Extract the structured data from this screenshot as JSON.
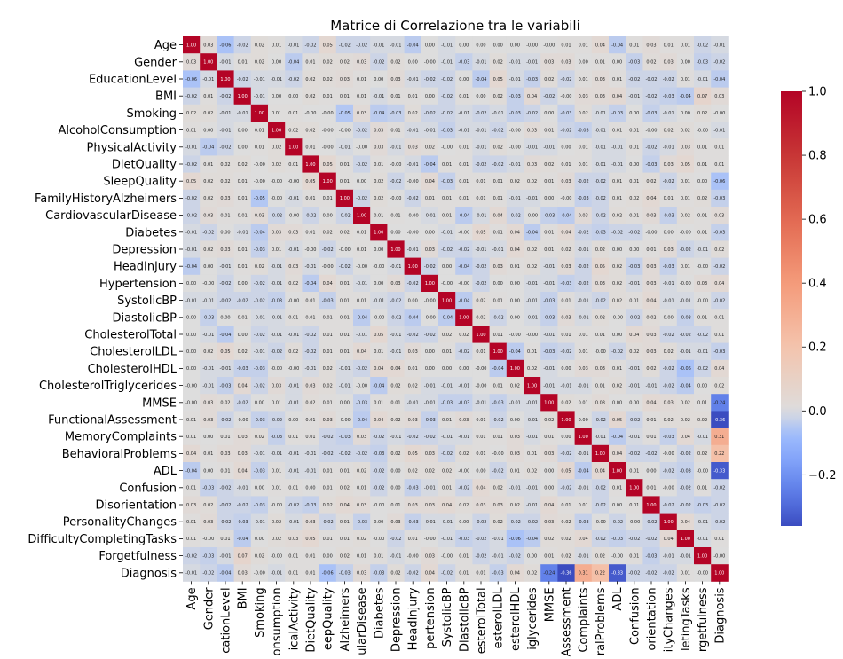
{
  "chart_data": {
    "type": "heatmap",
    "title": "Matrice di Correlazione tra le variabili",
    "variables": [
      "Age",
      "Gender",
      "EducationLevel",
      "BMI",
      "Smoking",
      "AlcoholConsumption",
      "PhysicalActivity",
      "DietQuality",
      "SleepQuality",
      "FamilyHistoryAlzheimers",
      "CardiovascularDisease",
      "Diabetes",
      "Depression",
      "HeadInjury",
      "Hypertension",
      "SystolicBP",
      "DiastolicBP",
      "CholesterolTotal",
      "CholesterolLDL",
      "CholesterolHDL",
      "CholesterolTriglycerides",
      "MMSE",
      "FunctionalAssessment",
      "MemoryComplaints",
      "BehavioralProblems",
      "ADL",
      "Confusion",
      "Disorientation",
      "PersonalityChanges",
      "DifficultyCompletingTasks",
      "Forgetfulness",
      "Diagnosis"
    ],
    "x_tick_labels": [
      "Age",
      "Gender",
      "cationLevel",
      "BMI",
      "Smoking",
      "onsumption",
      "icalActivity",
      "DietQuality",
      "eepQuality",
      "Alzheimers",
      "ularDisease",
      "Diabetes",
      "Depression",
      "HeadInjury",
      "pertension",
      "SystolicBP",
      "DiastolicBP",
      "esterolTotal",
      "esterolLDL",
      "esterolHDL",
      "iglycerides",
      "MMSE",
      "Assessment",
      "Complaints",
      "ralProblems",
      "ADL",
      "Confusion",
      "orientation",
      "ityChanges",
      "letingTasks",
      "rgetfulness",
      "Diagnosis"
    ],
    "matrix": [
      [
        1.0,
        0.03,
        -0.06,
        -0.02,
        0.02,
        0.01,
        -0.01,
        -0.02,
        0.05,
        -0.02,
        -0.02,
        -0.01,
        -0.01,
        -0.04,
        0.0,
        -0.01,
        0.0,
        0.0,
        0.0,
        0.0,
        -0.0,
        -0.0,
        0.01,
        0.01,
        0.04,
        -0.04,
        0.01,
        0.03,
        0.01,
        0.01,
        -0.02,
        -0.01
      ],
      [
        0.03,
        1.0,
        -0.01,
        0.01,
        0.02,
        0.0,
        -0.04,
        0.01,
        0.02,
        0.02,
        0.03,
        -0.02,
        0.02,
        0.0,
        -0.0,
        -0.01,
        -0.03,
        -0.01,
        0.02,
        -0.01,
        -0.01,
        0.03,
        0.03,
        0.0,
        0.01,
        0.0,
        -0.03,
        0.02,
        0.03,
        0.0,
        -0.03,
        -0.02
      ],
      [
        -0.06,
        -0.01,
        1.0,
        -0.02,
        -0.01,
        -0.01,
        -0.02,
        0.02,
        0.02,
        0.03,
        0.01,
        0.0,
        0.03,
        -0.01,
        -0.02,
        -0.02,
        0.0,
        -0.04,
        0.05,
        -0.01,
        -0.03,
        0.02,
        -0.02,
        0.01,
        0.03,
        0.01,
        -0.02,
        -0.02,
        -0.02,
        0.01,
        -0.01,
        -0.04
      ],
      [
        -0.02,
        0.01,
        -0.02,
        1.0,
        -0.01,
        0.0,
        0.0,
        0.02,
        0.01,
        0.01,
        0.01,
        -0.01,
        0.01,
        0.01,
        0.0,
        -0.02,
        0.01,
        0.0,
        0.02,
        -0.03,
        0.04,
        -0.02,
        -0.0,
        0.03,
        0.03,
        0.04,
        -0.01,
        -0.02,
        -0.03,
        -0.04,
        0.07,
        0.03
      ],
      [
        0.02,
        0.02,
        -0.01,
        -0.01,
        1.0,
        0.01,
        0.01,
        -0.0,
        -0.0,
        -0.05,
        0.03,
        -0.04,
        -0.03,
        0.02,
        -0.02,
        -0.02,
        -0.01,
        -0.02,
        -0.01,
        -0.03,
        -0.02,
        0.0,
        -0.03,
        0.02,
        -0.01,
        -0.03,
        0.0,
        -0.03,
        -0.01,
        0.0,
        0.02,
        -0.0
      ],
      [
        0.01,
        0.0,
        -0.01,
        0.0,
        0.01,
        1.0,
        0.02,
        0.02,
        -0.0,
        -0.0,
        -0.02,
        0.03,
        0.01,
        -0.01,
        -0.01,
        -0.03,
        -0.01,
        -0.01,
        -0.02,
        -0.0,
        0.03,
        0.01,
        -0.02,
        -0.03,
        -0.01,
        0.01,
        0.01,
        -0.0,
        0.02,
        0.02,
        -0.0,
        -0.01
      ],
      [
        -0.01,
        -0.04,
        -0.02,
        0.0,
        0.01,
        0.02,
        1.0,
        0.01,
        -0.0,
        -0.01,
        -0.0,
        0.03,
        -0.01,
        0.03,
        0.02,
        -0.0,
        0.01,
        -0.01,
        0.02,
        -0.0,
        -0.01,
        -0.01,
        0.0,
        0.01,
        -0.01,
        -0.01,
        0.01,
        -0.02,
        -0.01,
        0.03,
        0.01,
        0.01
      ],
      [
        -0.02,
        0.01,
        0.02,
        0.02,
        -0.0,
        0.02,
        0.01,
        1.0,
        0.05,
        0.01,
        -0.02,
        0.01,
        -0.0,
        -0.01,
        -0.04,
        0.01,
        0.01,
        -0.02,
        -0.02,
        -0.01,
        0.03,
        0.02,
        0.01,
        0.01,
        -0.01,
        -0.01,
        0.0,
        -0.03,
        0.03,
        0.05,
        0.01,
        0.01
      ],
      [
        0.05,
        0.02,
        0.02,
        0.01,
        -0.0,
        -0.0,
        -0.0,
        0.05,
        1.0,
        0.01,
        0.0,
        0.02,
        -0.02,
        -0.0,
        0.04,
        -0.03,
        0.01,
        0.01,
        0.01,
        0.02,
        0.02,
        0.01,
        0.03,
        -0.02,
        -0.02,
        0.01,
        0.01,
        0.02,
        -0.02,
        0.01,
        0.0,
        -0.06
      ],
      [
        -0.02,
        0.02,
        0.03,
        0.01,
        -0.05,
        -0.0,
        -0.01,
        0.01,
        0.01,
        1.0,
        -0.02,
        0.02,
        -0.0,
        -0.02,
        0.01,
        0.01,
        0.01,
        0.01,
        0.01,
        -0.01,
        -0.01,
        0.0,
        -0.0,
        -0.03,
        -0.02,
        0.01,
        0.02,
        0.04,
        0.01,
        0.01,
        0.02,
        -0.03
      ],
      [
        -0.02,
        0.03,
        0.01,
        0.01,
        0.03,
        -0.02,
        -0.0,
        -0.02,
        0.0,
        -0.02,
        1.0,
        0.01,
        0.01,
        -0.0,
        -0.01,
        0.01,
        -0.04,
        -0.01,
        0.04,
        -0.02,
        -0.0,
        -0.03,
        -0.04,
        0.03,
        -0.02,
        0.02,
        0.01,
        0.03,
        -0.03,
        0.02,
        0.01,
        0.03
      ],
      [
        -0.01,
        -0.02,
        0.0,
        -0.01,
        -0.04,
        0.03,
        0.03,
        0.01,
        0.02,
        0.02,
        0.01,
        1.0,
        0.0,
        -0.0,
        0.0,
        -0.01,
        -0.0,
        0.05,
        0.01,
        0.04,
        -0.04,
        0.01,
        0.04,
        -0.02,
        -0.03,
        -0.02,
        -0.02,
        -0.0,
        0.0,
        -0.0,
        0.01,
        -0.03
      ],
      [
        -0.01,
        0.02,
        0.03,
        0.01,
        -0.03,
        0.01,
        -0.01,
        -0.0,
        -0.02,
        -0.0,
        0.01,
        0.0,
        1.0,
        -0.01,
        0.03,
        -0.02,
        -0.02,
        -0.01,
        -0.01,
        0.04,
        0.02,
        0.01,
        0.02,
        -0.01,
        0.02,
        0.0,
        0.0,
        0.01,
        0.03,
        -0.02,
        -0.01,
        0.02
      ],
      [
        -0.04,
        0.0,
        -0.01,
        0.01,
        0.02,
        -0.01,
        0.03,
        -0.01,
        -0.0,
        -0.02,
        -0.0,
        -0.0,
        -0.01,
        1.0,
        -0.02,
        0.0,
        -0.04,
        -0.02,
        0.03,
        0.01,
        0.02,
        -0.01,
        0.03,
        -0.02,
        0.05,
        0.02,
        -0.03,
        0.03,
        -0.03,
        0.01,
        -0.0,
        -0.02
      ],
      [
        0.0,
        -0.0,
        -0.02,
        0.0,
        -0.02,
        -0.01,
        0.02,
        -0.04,
        0.04,
        0.01,
        -0.01,
        0.0,
        0.03,
        -0.02,
        1.0,
        -0.0,
        -0.0,
        -0.02,
        0.0,
        0.0,
        -0.01,
        -0.01,
        -0.03,
        -0.02,
        0.03,
        0.02,
        -0.01,
        0.03,
        -0.01,
        -0.0,
        0.03,
        0.04
      ],
      [
        -0.01,
        -0.01,
        -0.02,
        -0.02,
        -0.02,
        -0.03,
        -0.0,
        0.01,
        -0.03,
        0.01,
        0.01,
        -0.01,
        -0.02,
        0.0,
        -0.0,
        1.0,
        -0.04,
        0.02,
        0.01,
        0.0,
        -0.01,
        -0.03,
        0.01,
        -0.01,
        -0.02,
        0.02,
        0.01,
        0.04,
        -0.01,
        -0.01,
        -0.0,
        -0.02
      ],
      [
        0.0,
        -0.03,
        0.0,
        0.01,
        -0.01,
        -0.01,
        0.01,
        0.01,
        0.01,
        0.01,
        -0.04,
        -0.0,
        -0.02,
        -0.04,
        -0.0,
        -0.04,
        1.0,
        0.02,
        -0.02,
        0.0,
        -0.01,
        -0.03,
        0.03,
        -0.01,
        0.02,
        -0.0,
        -0.02,
        0.02,
        0.0,
        -0.03,
        0.01,
        0.01
      ],
      [
        0.0,
        -0.01,
        -0.04,
        0.0,
        -0.02,
        -0.01,
        -0.01,
        -0.02,
        0.01,
        0.01,
        -0.01,
        0.05,
        -0.01,
        -0.02,
        -0.02,
        0.02,
        0.02,
        1.0,
        0.01,
        -0.0,
        -0.0,
        -0.01,
        0.01,
        0.01,
        0.01,
        0.0,
        0.04,
        0.03,
        -0.02,
        -0.02,
        -0.02,
        0.01
      ],
      [
        0.0,
        0.02,
        0.05,
        0.02,
        -0.01,
        -0.02,
        0.02,
        -0.02,
        0.01,
        0.01,
        0.04,
        0.01,
        -0.01,
        0.03,
        0.0,
        0.01,
        -0.02,
        0.01,
        1.0,
        -0.04,
        0.01,
        -0.03,
        -0.02,
        0.01,
        -0.0,
        -0.02,
        0.02,
        0.03,
        0.02,
        -0.01,
        -0.01,
        -0.03
      ],
      [
        0.0,
        -0.01,
        -0.01,
        -0.03,
        -0.03,
        -0.0,
        -0.0,
        -0.01,
        0.02,
        -0.01,
        -0.02,
        0.04,
        0.04,
        0.01,
        0.0,
        0.0,
        0.0,
        -0.0,
        -0.04,
        1.0,
        0.02,
        -0.01,
        0.0,
        0.03,
        0.03,
        0.01,
        -0.01,
        0.02,
        -0.02,
        -0.06,
        -0.02,
        0.04
      ],
      [
        -0.0,
        -0.01,
        -0.03,
        0.04,
        -0.02,
        0.03,
        -0.01,
        0.03,
        0.02,
        -0.01,
        -0.0,
        -0.04,
        0.02,
        0.02,
        -0.01,
        -0.01,
        -0.01,
        -0.0,
        0.01,
        0.02,
        1.0,
        -0.01,
        -0.01,
        -0.01,
        0.01,
        0.02,
        -0.01,
        -0.01,
        -0.02,
        -0.04,
        0.0,
        0.02
      ],
      [
        -0.0,
        0.03,
        0.02,
        -0.02,
        0.0,
        0.01,
        -0.01,
        0.02,
        0.01,
        0.0,
        -0.03,
        0.01,
        0.01,
        -0.01,
        -0.01,
        -0.03,
        -0.03,
        -0.01,
        -0.03,
        -0.01,
        -0.01,
        1.0,
        0.02,
        0.01,
        0.03,
        0.0,
        0.0,
        0.04,
        0.03,
        0.02,
        0.01,
        -0.24
      ],
      [
        0.01,
        0.03,
        -0.02,
        -0.0,
        -0.03,
        -0.02,
        0.0,
        0.01,
        0.03,
        -0.0,
        -0.04,
        0.04,
        0.02,
        0.03,
        -0.03,
        0.01,
        0.03,
        0.01,
        -0.02,
        0.0,
        -0.01,
        0.02,
        1.0,
        0.0,
        -0.02,
        0.05,
        -0.02,
        0.01,
        0.02,
        0.02,
        0.02,
        -0.36
      ],
      [
        0.01,
        0.0,
        0.01,
        0.03,
        0.02,
        -0.03,
        0.01,
        0.01,
        -0.02,
        -0.03,
        0.03,
        -0.02,
        -0.01,
        -0.02,
        -0.02,
        -0.01,
        -0.01,
        0.01,
        0.01,
        0.03,
        -0.01,
        0.01,
        0.0,
        1.0,
        -0.01,
        -0.04,
        -0.01,
        0.01,
        -0.03,
        0.04,
        -0.01,
        0.31
      ],
      [
        0.04,
        0.01,
        0.03,
        0.03,
        -0.01,
        -0.01,
        -0.01,
        -0.01,
        -0.02,
        -0.02,
        -0.02,
        -0.03,
        0.02,
        0.05,
        0.03,
        -0.02,
        0.02,
        0.01,
        -0.0,
        0.03,
        0.01,
        0.03,
        -0.02,
        -0.01,
        1.0,
        0.04,
        -0.02,
        -0.02,
        -0.0,
        -0.02,
        0.02,
        0.22
      ],
      [
        -0.04,
        0.0,
        0.01,
        0.04,
        -0.03,
        0.01,
        -0.01,
        -0.01,
        0.01,
        0.01,
        0.02,
        -0.02,
        0.0,
        0.02,
        0.02,
        0.02,
        -0.0,
        0.0,
        -0.02,
        0.01,
        0.02,
        0.0,
        0.05,
        -0.04,
        0.04,
        1.0,
        0.01,
        0.0,
        -0.02,
        -0.03,
        -0.0,
        -0.33
      ],
      [
        0.01,
        -0.03,
        -0.02,
        -0.01,
        0.0,
        0.01,
        0.01,
        0.0,
        0.01,
        0.02,
        0.01,
        -0.02,
        0.0,
        -0.03,
        -0.01,
        0.01,
        -0.02,
        0.04,
        0.02,
        -0.01,
        -0.01,
        0.0,
        -0.02,
        -0.01,
        -0.02,
        0.01,
        1.0,
        0.01,
        -0.0,
        -0.02,
        0.01,
        -0.02
      ],
      [
        0.03,
        0.02,
        -0.02,
        -0.02,
        -0.03,
        -0.0,
        -0.02,
        -0.03,
        0.02,
        0.04,
        0.03,
        -0.0,
        0.01,
        0.03,
        0.03,
        0.04,
        0.02,
        0.03,
        0.03,
        0.02,
        -0.01,
        0.04,
        0.01,
        0.01,
        -0.02,
        0.0,
        0.01,
        1.0,
        -0.02,
        -0.02,
        -0.03,
        -0.02
      ],
      [
        0.01,
        0.03,
        -0.02,
        -0.03,
        -0.01,
        0.02,
        -0.01,
        0.03,
        -0.02,
        0.01,
        -0.03,
        0.0,
        0.03,
        -0.03,
        -0.01,
        -0.01,
        0.0,
        -0.02,
        0.02,
        -0.02,
        -0.02,
        0.03,
        0.02,
        -0.03,
        -0.0,
        -0.02,
        -0.0,
        -0.02,
        1.0,
        0.04,
        -0.01,
        -0.02
      ],
      [
        0.01,
        -0.0,
        0.01,
        -0.04,
        0.0,
        0.02,
        0.03,
        0.05,
        0.01,
        0.01,
        0.02,
        -0.0,
        -0.02,
        0.01,
        -0.0,
        -0.01,
        -0.03,
        -0.02,
        -0.01,
        -0.06,
        -0.04,
        0.02,
        0.02,
        0.04,
        -0.02,
        -0.03,
        -0.02,
        -0.02,
        0.04,
        1.0,
        -0.01,
        0.01
      ],
      [
        -0.02,
        -0.03,
        -0.01,
        0.07,
        0.02,
        -0.0,
        0.01,
        0.01,
        0.0,
        0.02,
        0.01,
        0.01,
        -0.01,
        -0.0,
        0.03,
        -0.0,
        0.01,
        -0.02,
        -0.01,
        -0.02,
        0.0,
        0.01,
        0.02,
        -0.01,
        0.02,
        -0.0,
        0.01,
        -0.03,
        -0.01,
        -0.01,
        1.0,
        -0.0
      ],
      [
        -0.01,
        -0.02,
        -0.04,
        0.03,
        -0.0,
        -0.01,
        0.01,
        0.01,
        -0.06,
        -0.03,
        0.03,
        -0.03,
        0.02,
        -0.02,
        0.04,
        -0.02,
        0.01,
        0.01,
        -0.03,
        0.04,
        0.02,
        -0.24,
        -0.36,
        0.31,
        0.22,
        -0.33,
        -0.02,
        -0.02,
        -0.02,
        0.01,
        -0.0,
        1.0
      ]
    ],
    "colorbar": {
      "min": -0.36,
      "max": 1.0,
      "ticks": [
        -0.2,
        0.0,
        0.2,
        0.4,
        0.6,
        0.8,
        1.0
      ],
      "colormap": "coolwarm",
      "center": 0
    }
  }
}
